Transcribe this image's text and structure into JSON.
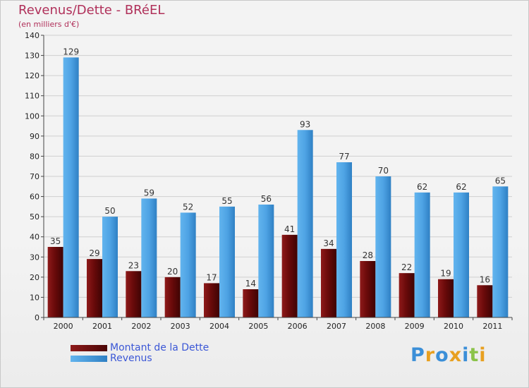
{
  "chart_data": {
    "type": "bar",
    "title": "Revenus/Dette - BRéEL",
    "subtitle": "(en milliers d'€)",
    "xlabel": "",
    "ylabel": "",
    "ylim": [
      0,
      140
    ],
    "yticks": [
      0,
      10,
      20,
      30,
      40,
      50,
      60,
      70,
      80,
      90,
      100,
      110,
      120,
      130,
      140
    ],
    "grid": true,
    "legend_position": "bottom-left",
    "categories": [
      "2000",
      "2001",
      "2002",
      "2003",
      "2004",
      "2005",
      "2006",
      "2007",
      "2008",
      "2009",
      "2010",
      "2011"
    ],
    "series": [
      {
        "name": "Montant de la Dette",
        "color": "#7a0f0f",
        "values": [
          35,
          29,
          23,
          20,
          17,
          14,
          41,
          34,
          28,
          22,
          19,
          16
        ]
      },
      {
        "name": "Revenus",
        "color": "#4ea3e4",
        "values": [
          129,
          50,
          59,
          52,
          55,
          56,
          93,
          77,
          70,
          62,
          62,
          65
        ]
      }
    ]
  },
  "logo": {
    "text": "Proxiti",
    "letter_colors": [
      "#3b8fd8",
      "#e8a020",
      "#3b8fd8",
      "#e8a020",
      "#3b8fd8",
      "#8bc34a",
      "#e8a020"
    ]
  }
}
